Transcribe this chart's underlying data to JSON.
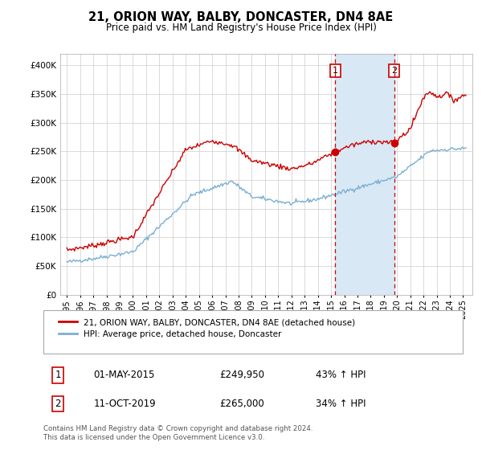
{
  "title": "21, ORION WAY, BALBY, DONCASTER, DN4 8AE",
  "subtitle": "Price paid vs. HM Land Registry's House Price Index (HPI)",
  "sale1_date": 2015.33,
  "sale1_price": 249950,
  "sale1_date_str": "01-MAY-2015",
  "sale1_pct": "43% ↑ HPI",
  "sale2_date": 2019.78,
  "sale2_price": 265000,
  "sale2_date_str": "11-OCT-2019",
  "sale2_pct": "34% ↑ HPI",
  "red_color": "#cc0000",
  "blue_color": "#7bafd4",
  "shade_color": "#d8e8f5",
  "legend1": "21, ORION WAY, BALBY, DONCASTER, DN4 8AE (detached house)",
  "legend2": "HPI: Average price, detached house, Doncaster",
  "footer": "Contains HM Land Registry data © Crown copyright and database right 2024.\nThis data is licensed under the Open Government Licence v3.0.",
  "ylim_max": 420000,
  "ylim_min": 0,
  "xlim_min": 1994.5,
  "xlim_max": 2025.7
}
